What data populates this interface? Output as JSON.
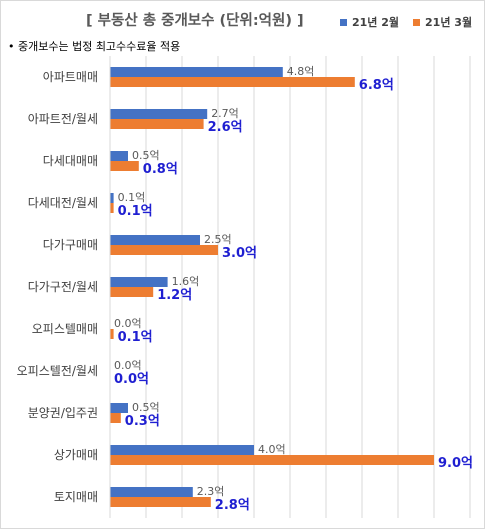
{
  "title": "[ 부동산 총 중개보수 (단위:억원) ]",
  "note": "• 중개보수는 법정 최고수수료율 적용",
  "colors": {
    "feb": "#4472c4",
    "mar": "#ed7d31",
    "label_mar": "#1f1fd1"
  },
  "chart_data": {
    "type": "bar",
    "orientation": "horizontal",
    "title": "[ 부동산 총 중개보수 (단위:억원) ]",
    "xlim": [
      0,
      10
    ],
    "grid": true,
    "legend_position": "top-right",
    "value_suffix": "억",
    "categories": [
      "아파트매매",
      "아파트전/월세",
      "다세대매매",
      "다세대전/월세",
      "다가구매매",
      "다가구전/월세",
      "오피스텔매매",
      "오피스텔전/월세",
      "분양권/입주권",
      "상가매매",
      "토지매매"
    ],
    "series": [
      {
        "name": "21년 2월",
        "values": [
          4.8,
          2.7,
          0.5,
          0.1,
          2.5,
          1.6,
          0.0,
          0.0,
          0.5,
          4.0,
          2.3
        ]
      },
      {
        "name": "21년 3월",
        "values": [
          6.8,
          2.6,
          0.8,
          0.1,
          3.0,
          1.2,
          0.1,
          0.0,
          0.3,
          9.0,
          2.8
        ]
      }
    ]
  }
}
